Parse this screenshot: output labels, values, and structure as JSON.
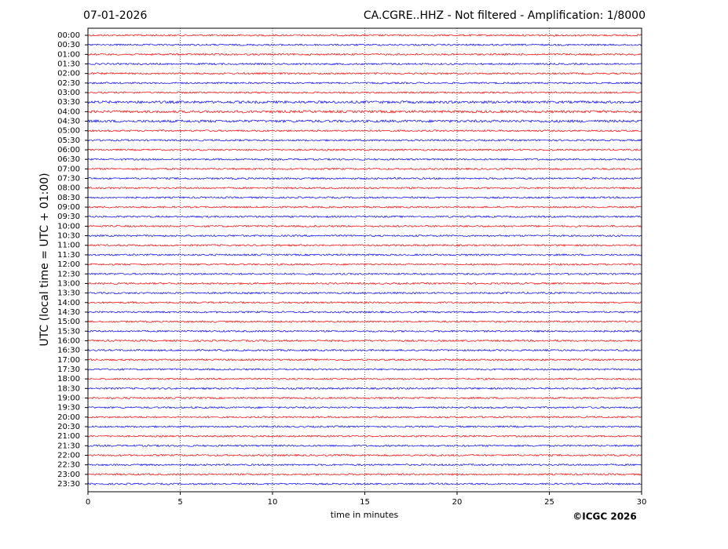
{
  "chart_data": {
    "type": "helicorder",
    "date": "07-01-2026",
    "title": "CA.CGRE..HHZ - Not filtered - Amplification: 1/8000",
    "ylabel": "UTC (local time = UTC + 01:00)",
    "xlabel": "time in minutes",
    "copyright": "©ICGC 2026",
    "categories": [
      "00:00",
      "00:30",
      "01:00",
      "01:30",
      "02:00",
      "02:30",
      "03:00",
      "03:30",
      "04:00",
      "04:30",
      "05:00",
      "05:30",
      "06:00",
      "06:30",
      "07:00",
      "07:30",
      "08:00",
      "08:30",
      "09:00",
      "09:30",
      "10:00",
      "10:30",
      "11:00",
      "11:30",
      "12:00",
      "12:30",
      "13:00",
      "13:30",
      "14:00",
      "14:30",
      "15:00",
      "15:30",
      "16:00",
      "16:30",
      "17:00",
      "17:30",
      "18:00",
      "18:30",
      "19:00",
      "19:30",
      "20:00",
      "20:30",
      "21:00",
      "21:30",
      "22:00",
      "22:30",
      "23:00",
      "23:30"
    ],
    "colors": [
      "#ff0000",
      "#0000ff"
    ],
    "xlim": [
      0,
      30
    ],
    "xticks": [
      0,
      5,
      10,
      15,
      20,
      25,
      30
    ],
    "grid": true
  }
}
